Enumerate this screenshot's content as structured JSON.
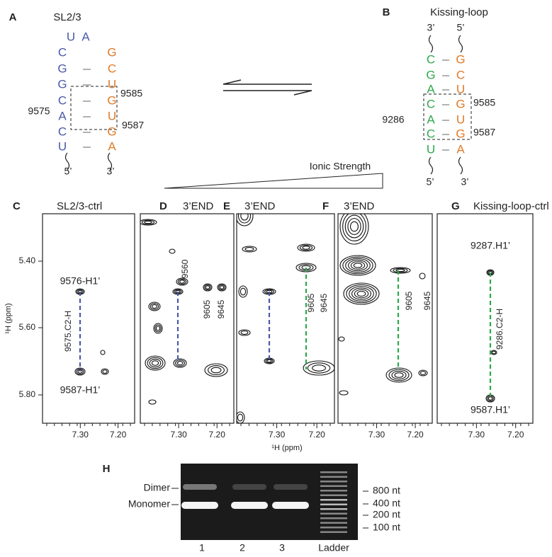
{
  "panel_a": {
    "letter": "A",
    "title": "SL2/3",
    "loop": [
      "U",
      "A"
    ],
    "left_strand": [
      "C",
      "G",
      "G",
      "C",
      "A",
      "C",
      "U"
    ],
    "right_strand": [
      "G",
      "C",
      "U",
      "G",
      "U",
      "G",
      "A"
    ],
    "labels": [
      "9585",
      "9575",
      "9587"
    ],
    "ends": [
      "5’",
      "3’"
    ]
  },
  "panel_b": {
    "letter": "B",
    "title": "Kissing-loop",
    "top_ends": [
      "3’",
      "5’"
    ],
    "left_strand": [
      "C",
      "G",
      "A",
      "C",
      "A",
      "C",
      "U"
    ],
    "right_strand": [
      "G",
      "C",
      "U",
      "G",
      "U",
      "G",
      "A"
    ],
    "labels": [
      "9585",
      "9286",
      "9587"
    ],
    "bottom_ends": [
      "5’",
      "3’"
    ]
  },
  "ionic_strength": "Ionic Strength",
  "spectra": {
    "y_axis_label": "¹H (ppm)",
    "x_axis_label": "¹H (ppm)",
    "yticks": [
      "5.40",
      "5.60",
      "5.80"
    ],
    "xticks": [
      "7.30",
      "7.20"
    ],
    "panels": [
      {
        "letter": "C",
        "title": "SL2/3-ctrl",
        "annotations": [
          "9576-H1’",
          "9575.C2-H",
          "9587-H1’"
        ]
      },
      {
        "letter": "D",
        "title": "3’END",
        "annotations": [
          "9560",
          "9605",
          "9645"
        ]
      },
      {
        "letter": "E",
        "title": "3’END",
        "annotations": [
          "9605",
          "9645"
        ]
      },
      {
        "letter": "F",
        "title": "3’END",
        "annotations": [
          "9605",
          "9645"
        ]
      },
      {
        "letter": "G",
        "title": "Kissing-loop-ctrl",
        "annotations": [
          "9287.H1’",
          "9286.C2-H",
          "9587.H1’"
        ]
      }
    ]
  },
  "gel": {
    "letter": "H",
    "bands": [
      "Dimer",
      "Monomer"
    ],
    "ladder_sizes": [
      "800 nt",
      "400 nt",
      "200 nt",
      "100 nt"
    ],
    "lanes": [
      "1",
      "2",
      "3",
      "Ladder"
    ]
  }
}
